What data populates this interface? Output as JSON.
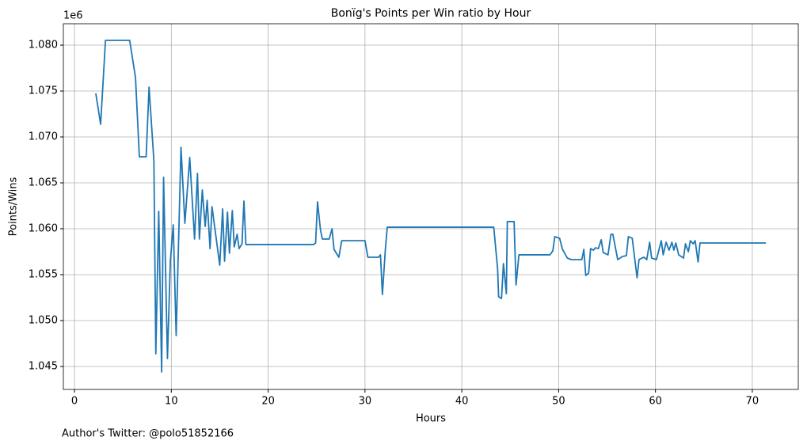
{
  "chart_data": {
    "type": "line",
    "title": "Bonïg's Points per Win ratio by Hour",
    "x_label": "Hours",
    "y_label": "Points/Wins",
    "y_offset_label": "1e6",
    "footer": "Author's Twitter: @polo51852166",
    "color": "#1f77b4",
    "grid": true,
    "xlim": [
      -1.15,
      74.75
    ],
    "ylim": [
      1042500,
      1082330
    ],
    "xticks": [
      0,
      10,
      20,
      30,
      40,
      50,
      60,
      70
    ],
    "yticks": [
      {
        "value": 1045000,
        "label": "1.045"
      },
      {
        "value": 1050000,
        "label": "1.050"
      },
      {
        "value": 1055000,
        "label": "1.055"
      },
      {
        "value": 1060000,
        "label": "1.060"
      },
      {
        "value": 1065000,
        "label": "1.065"
      },
      {
        "value": 1070000,
        "label": "1.070"
      },
      {
        "value": 1075000,
        "label": "1.075"
      },
      {
        "value": 1080000,
        "label": "1.080"
      }
    ],
    "x": [
      2.2,
      2.7,
      3.2,
      5.7,
      6.3,
      6.7,
      7.4,
      7.7,
      8.2,
      8.4,
      8.7,
      9.0,
      9.2,
      9.6,
      9.9,
      10.2,
      10.5,
      11.0,
      11.4,
      11.9,
      12.4,
      12.7,
      12.9,
      13.2,
      13.5,
      13.7,
      14.0,
      14.2,
      15.0,
      15.3,
      15.5,
      15.8,
      16.0,
      16.3,
      16.5,
      16.8,
      17.0,
      17.3,
      17.5,
      17.7,
      24.7,
      24.9,
      25.1,
      25.4,
      25.6,
      26.3,
      26.6,
      26.8,
      27.3,
      27.6,
      30.0,
      30.3,
      31.4,
      31.6,
      31.8,
      32.1,
      32.3,
      43.3,
      43.7,
      43.8,
      44.1,
      44.3,
      44.6,
      44.7,
      45.4,
      45.6,
      45.9,
      49.1,
      49.4,
      49.6,
      50.1,
      50.4,
      50.9,
      51.3,
      52.4,
      52.6,
      52.8,
      53.1,
      53.3,
      53.6,
      53.8,
      54.1,
      54.4,
      54.6,
      55.1,
      55.4,
      55.6,
      56.1,
      56.6,
      57.0,
      57.2,
      57.6,
      58.1,
      58.3,
      58.8,
      59.1,
      59.4,
      59.6,
      60.1,
      60.6,
      60.8,
      61.1,
      61.4,
      61.7,
      61.9,
      62.1,
      62.4,
      62.9,
      63.1,
      63.4,
      63.6,
      63.9,
      64.1,
      64.4,
      64.6,
      71.4
    ],
    "values": [
      1074740,
      1071380,
      1080520,
      1080520,
      1076470,
      1067840,
      1067840,
      1075430,
      1067410,
      1046380,
      1061900,
      1044400,
      1065600,
      1045860,
      1056470,
      1060430,
      1048360,
      1068880,
      1060600,
      1067760,
      1058880,
      1066030,
      1058880,
      1064220,
      1060260,
      1063100,
      1057840,
      1062410,
      1056030,
      1062160,
      1056470,
      1061810,
      1057330,
      1061980,
      1058020,
      1059400,
      1057840,
      1058360,
      1063020,
      1058280,
      1058280,
      1058450,
      1062930,
      1059910,
      1058880,
      1058880,
      1060000,
      1057760,
      1056900,
      1058700,
      1058700,
      1056900,
      1056900,
      1057160,
      1052840,
      1057670,
      1060170,
      1060170,
      1055600,
      1052590,
      1052410,
      1056210,
      1052930,
      1060780,
      1060780,
      1053880,
      1057160,
      1057160,
      1057590,
      1059140,
      1058970,
      1057760,
      1056810,
      1056640,
      1056640,
      1057760,
      1054910,
      1055170,
      1057840,
      1057670,
      1057930,
      1057840,
      1058800,
      1057410,
      1057160,
      1059400,
      1059400,
      1056640,
      1056980,
      1057070,
      1059140,
      1058970,
      1054660,
      1056640,
      1056900,
      1056640,
      1058530,
      1056810,
      1056640,
      1058700,
      1057160,
      1058530,
      1057670,
      1058530,
      1057670,
      1058450,
      1057160,
      1056810,
      1058360,
      1057500,
      1058700,
      1058360,
      1058700,
      1056380,
      1058450,
      1058450
    ]
  }
}
